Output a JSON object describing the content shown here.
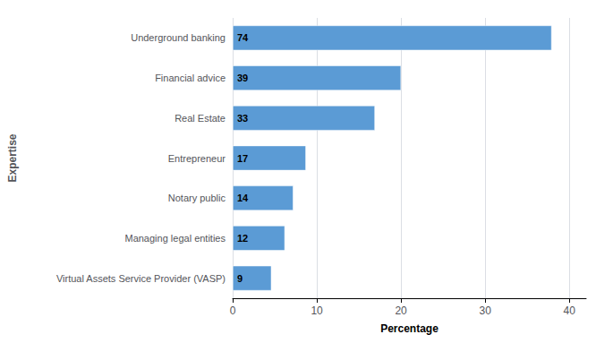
{
  "chart_data": {
    "type": "bar",
    "orientation": "horizontal",
    "categories": [
      "Virtual Assets Service Provider (VASP)",
      "Managing legal entities",
      "Notary public",
      "Entrepreneur",
      "Real Estate",
      "Financial advice",
      "Underground banking"
    ],
    "values": [
      4.6,
      6.2,
      7.2,
      8.7,
      16.9,
      20.0,
      37.9
    ],
    "counts": [
      9,
      12,
      14,
      17,
      33,
      39,
      74
    ],
    "color": "#5B9BD5",
    "xlabel": "Percentage",
    "ylabel": "Expertise",
    "xlim": [
      0,
      42
    ],
    "xticks": [
      0,
      10,
      20,
      30,
      40
    ],
    "grid": true
  }
}
